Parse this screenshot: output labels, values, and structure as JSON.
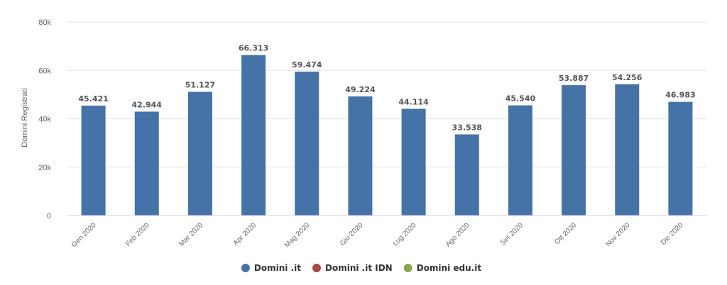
{
  "chart_data": {
    "type": "bar",
    "ylabel": "Domini Registrati",
    "ylim": [
      0,
      80000
    ],
    "yticks": [
      {
        "value": 0,
        "label": "0"
      },
      {
        "value": 20000,
        "label": "20k"
      },
      {
        "value": 40000,
        "label": "40k"
      },
      {
        "value": 60000,
        "label": "60k"
      },
      {
        "value": 80000,
        "label": "80k"
      }
    ],
    "grid": true,
    "categories": [
      "Gen 2020",
      "Feb 2020",
      "Mar 2020",
      "Apr 2020",
      "Mag 2020",
      "Giu 2020",
      "Lug 2020",
      "Ago 2020",
      "Set 2020",
      "Ott 2020",
      "Nov 2020",
      "Dic 2020"
    ],
    "series": [
      {
        "name": "Domini .it",
        "color": "#4572a7",
        "values": [
          45421,
          42944,
          51127,
          66313,
          59474,
          49224,
          44114,
          33538,
          45540,
          53887,
          54256,
          46983
        ],
        "labels": [
          "45.421",
          "42.944",
          "51.127",
          "66.313",
          "59.474",
          "49.224",
          "44.114",
          "33.538",
          "45.540",
          "53.887",
          "54.256",
          "46.983"
        ]
      }
    ],
    "legend": {
      "position": "bottom-center",
      "items": [
        {
          "name": "Domini .it",
          "color": "#4572a7"
        },
        {
          "name": "Domini .it IDN",
          "color": "#aa4643"
        },
        {
          "name": "Domini edu.it",
          "color": "#89a54e"
        }
      ]
    }
  }
}
